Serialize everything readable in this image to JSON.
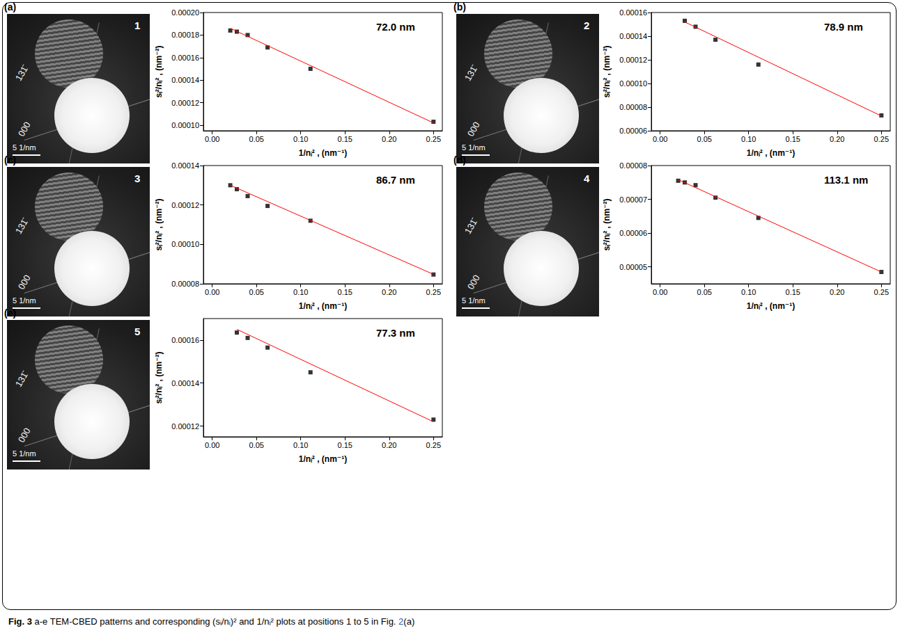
{
  "chart_data": [
    {
      "type": "scatter",
      "panel": "(a)",
      "annotation": "72.0 nm",
      "image": {
        "number": "1",
        "labels": [
          "131̄",
          "000"
        ],
        "scale_bar": "5 1/nm"
      },
      "x_label": "1/nᵢ² , (nm⁻¹)",
      "y_label": "sᵢ²/nᵢ² , (nm⁻²)",
      "grid": false,
      "xlim": [
        -0.01,
        0.26
      ],
      "xticks": [
        {
          "value": 0,
          "label": "0.00"
        },
        {
          "value": 0.05,
          "label": "0.05"
        },
        {
          "value": 0.1,
          "label": "0.10"
        },
        {
          "value": 0.15,
          "label": "0.15"
        },
        {
          "value": 0.2,
          "label": "0.20"
        },
        {
          "value": 0.25,
          "label": "0.25"
        }
      ],
      "ylim": [
        9.5e-05,
        0.0002
      ],
      "yticks": [
        {
          "value": 0.0001,
          "label": "0.00010"
        },
        {
          "value": 0.00012,
          "label": "0.00012"
        },
        {
          "value": 0.00014,
          "label": "0.00014"
        },
        {
          "value": 0.00016,
          "label": "0.00016"
        },
        {
          "value": 0.00018,
          "label": "0.00018"
        },
        {
          "value": 0.0002,
          "label": "0.00020"
        }
      ],
      "series": [
        {
          "type": "scatter",
          "marker": "square",
          "color": "#000000",
          "x": [
            0.0204,
            0.0278,
            0.04,
            0.0625,
            0.111,
            0.25
          ],
          "values": [
            0.000184,
            0.000183,
            0.00018,
            0.000169,
            0.00015,
            0.000103
          ]
        },
        {
          "type": "line",
          "line_style": "solid",
          "color": "#ff0000",
          "x": [
            0.0204,
            0.25
          ],
          "values": [
            0.000186,
            0.000102
          ]
        }
      ]
    },
    {
      "type": "scatter",
      "panel": "(b)",
      "annotation": "78.9 nm",
      "image": {
        "number": "2",
        "labels": [
          "131̄",
          "000"
        ],
        "scale_bar": "5 1/nm"
      },
      "x_label": "1/nᵢ² , (nm⁻¹)",
      "y_label": "sᵢ²/nᵢ² , (nm⁻²)",
      "grid": false,
      "xlim": [
        -0.01,
        0.26
      ],
      "xticks": [
        {
          "value": 0,
          "label": "0.00"
        },
        {
          "value": 0.05,
          "label": "0.05"
        },
        {
          "value": 0.1,
          "label": "0.10"
        },
        {
          "value": 0.15,
          "label": "0.15"
        },
        {
          "value": 0.2,
          "label": "0.20"
        },
        {
          "value": 0.25,
          "label": "0.25"
        }
      ],
      "ylim": [
        6e-05,
        0.00016
      ],
      "yticks": [
        {
          "value": 6e-05,
          "label": "0.00006"
        },
        {
          "value": 8e-05,
          "label": "0.00008"
        },
        {
          "value": 0.0001,
          "label": "0.00010"
        },
        {
          "value": 0.00012,
          "label": "0.00012"
        },
        {
          "value": 0.00014,
          "label": "0.00014"
        },
        {
          "value": 0.00016,
          "label": "0.00016"
        }
      ],
      "series": [
        {
          "type": "scatter",
          "marker": "square",
          "color": "#000000",
          "x": [
            0.0278,
            0.04,
            0.0625,
            0.111,
            0.25
          ],
          "values": [
            0.000153,
            0.000148,
            0.000137,
            0.000116,
            7.3e-05
          ]
        },
        {
          "type": "line",
          "line_style": "solid",
          "color": "#ff0000",
          "x": [
            0.0278,
            0.25
          ],
          "values": [
            0.000152,
            7.25e-05
          ]
        }
      ]
    },
    {
      "type": "scatter",
      "panel": "(c)",
      "annotation": "86.7 nm",
      "image": {
        "number": "3",
        "labels": [
          "131̄",
          "000"
        ],
        "scale_bar": "5 1/nm"
      },
      "x_label": "1/nᵢ² , (nm⁻¹)",
      "y_label": "sᵢ²/nᵢ² , (nm⁻²)",
      "grid": false,
      "xlim": [
        -0.01,
        0.26
      ],
      "xticks": [
        {
          "value": 0,
          "label": "0.00"
        },
        {
          "value": 0.05,
          "label": "0.05"
        },
        {
          "value": 0.1,
          "label": "0.10"
        },
        {
          "value": 0.15,
          "label": "0.15"
        },
        {
          "value": 0.2,
          "label": "0.20"
        },
        {
          "value": 0.25,
          "label": "0.25"
        }
      ],
      "ylim": [
        8e-05,
        0.00014
      ],
      "yticks": [
        {
          "value": 8e-05,
          "label": "0.00008"
        },
        {
          "value": 0.0001,
          "label": "0.00010"
        },
        {
          "value": 0.00012,
          "label": "0.00012"
        },
        {
          "value": 0.00014,
          "label": "0.00014"
        }
      ],
      "series": [
        {
          "type": "scatter",
          "marker": "square",
          "color": "#000000",
          "x": [
            0.0204,
            0.0278,
            0.04,
            0.0625,
            0.111,
            0.25
          ],
          "values": [
            0.00013,
            0.000128,
            0.0001245,
            0.0001195,
            0.000112,
            8.47e-05
          ]
        },
        {
          "type": "line",
          "line_style": "solid",
          "color": "#ff0000",
          "x": [
            0.0204,
            0.25
          ],
          "values": [
            0.00013,
            8.48e-05
          ]
        }
      ]
    },
    {
      "type": "scatter",
      "panel": "(d)",
      "annotation": "113.1 nm",
      "image": {
        "number": "4",
        "labels": [
          "131̄",
          "000"
        ],
        "scale_bar": "5 1/nm"
      },
      "x_label": "1/nᵢ² , (nm⁻¹)",
      "y_label": "sᵢ²/nᵢ² , (nm⁻²)",
      "grid": false,
      "xlim": [
        -0.01,
        0.26
      ],
      "xticks": [
        {
          "value": 0,
          "label": "0.00"
        },
        {
          "value": 0.05,
          "label": "0.05"
        },
        {
          "value": 0.1,
          "label": "0.10"
        },
        {
          "value": 0.15,
          "label": "0.15"
        },
        {
          "value": 0.2,
          "label": "0.20"
        },
        {
          "value": 0.25,
          "label": "0.25"
        }
      ],
      "ylim": [
        4.5e-05,
        8e-05
      ],
      "yticks": [
        {
          "value": 5e-05,
          "label": "0.00005"
        },
        {
          "value": 6e-05,
          "label": "0.00006"
        },
        {
          "value": 7e-05,
          "label": "0.00007"
        },
        {
          "value": 8e-05,
          "label": "0.00008"
        }
      ],
      "series": [
        {
          "type": "scatter",
          "marker": "square",
          "color": "#000000",
          "x": [
            0.0204,
            0.0278,
            0.04,
            0.0625,
            0.111,
            0.25
          ],
          "values": [
            7.55e-05,
            7.5e-05,
            7.42e-05,
            7.05e-05,
            6.45e-05,
            4.85e-05
          ]
        },
        {
          "type": "line",
          "line_style": "solid",
          "color": "#ff0000",
          "x": [
            0.0204,
            0.25
          ],
          "values": [
            7.58e-05,
            4.85e-05
          ]
        }
      ]
    },
    {
      "type": "scatter",
      "panel": "(e)",
      "annotation": "77.3 nm",
      "image": {
        "number": "5",
        "labels": [
          "131̄",
          "000"
        ],
        "scale_bar": "5 1/nm"
      },
      "x_label": "1/nᵢ² , (nm⁻¹)",
      "y_label": "sᵢ²/nᵢ² , (nm⁻²)",
      "grid": false,
      "xlim": [
        -0.01,
        0.26
      ],
      "xticks": [
        {
          "value": 0,
          "label": "0.00"
        },
        {
          "value": 0.05,
          "label": "0.05"
        },
        {
          "value": 0.1,
          "label": "0.10"
        },
        {
          "value": 0.15,
          "label": "0.15"
        },
        {
          "value": 0.2,
          "label": "0.20"
        },
        {
          "value": 0.25,
          "label": "0.25"
        }
      ],
      "ylim": [
        0.000115,
        0.00017
      ],
      "yticks": [
        {
          "value": 0.00012,
          "label": "0.00012"
        },
        {
          "value": 0.00014,
          "label": "0.00014"
        },
        {
          "value": 0.00016,
          "label": "0.00016"
        }
      ],
      "series": [
        {
          "type": "scatter",
          "marker": "square",
          "color": "#000000",
          "x": [
            0.0278,
            0.04,
            0.0625,
            0.111,
            0.25
          ],
          "values": [
            0.0001635,
            0.000161,
            0.0001565,
            0.000145,
            0.000123
          ]
        },
        {
          "type": "line",
          "line_style": "solid",
          "color": "#ff0000",
          "x": [
            0.0278,
            0.25
          ],
          "values": [
            0.000165,
            0.000122
          ]
        }
      ]
    }
  ],
  "caption": {
    "label": "Fig. 3",
    "text": " a-e TEM-CBED patterns and corresponding (sᵢ/nᵢ)² and 1/nᵢ² plots at positions 1 to 5 in Fig. ",
    "ref": "2",
    "tail": "(a)"
  }
}
